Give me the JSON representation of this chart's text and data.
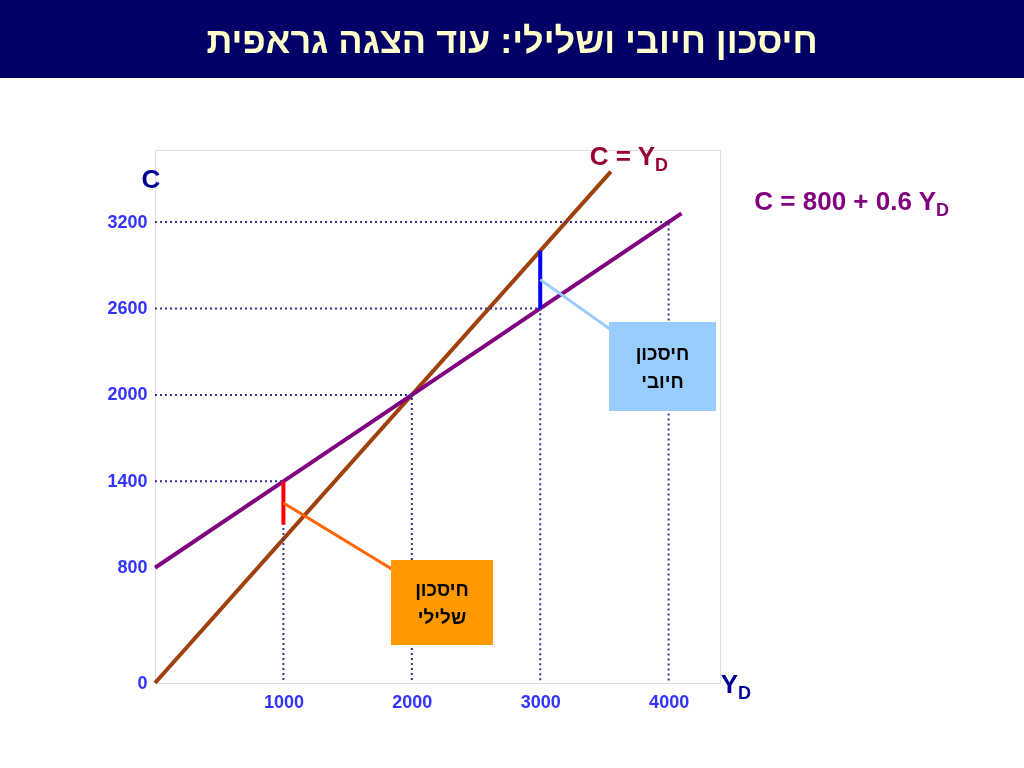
{
  "chart_data": {
    "type": "line",
    "title": "חיסכון חיובי ושלילי: עוד הצגה גראפית",
    "xlabel": "Y$_{D}$",
    "ylabel": "C",
    "xlim": [
      0,
      4400
    ],
    "ylim": [
      0,
      3700
    ],
    "xticks": [
      1000,
      2000,
      3000,
      4000
    ],
    "yticks": [
      0,
      800,
      1400,
      2000,
      2600,
      3200
    ],
    "grid": false,
    "series": [
      {
        "name": "C = Y$_{D}$",
        "color": "#a0410d",
        "x": [
          0,
          3550
        ],
        "values": [
          0,
          3550
        ]
      },
      {
        "name": "C = 800 + 0.6 Y$_{D}$",
        "color": "#800080",
        "x": [
          0,
          4100
        ],
        "values": [
          800,
          3260
        ]
      },
      {
        "color": "#333399",
        "line_style": "dotted",
        "x": [
          0,
          1000,
          1000
        ],
        "values": [
          1400,
          1400,
          0
        ]
      },
      {
        "color": "#333399",
        "line_style": "dotted",
        "x": [
          0,
          2000,
          2000
        ],
        "values": [
          2000,
          2000,
          0
        ]
      },
      {
        "color": "#333399",
        "line_style": "dotted",
        "x": [
          0,
          3000,
          3000
        ],
        "values": [
          2600,
          2600,
          0
        ]
      },
      {
        "color": "#333399",
        "line_style": "dotted",
        "x": [
          0,
          4000,
          4000
        ],
        "values": [
          3200,
          3200,
          0
        ]
      },
      {
        "color": "#ff0000",
        "x": [
          1000,
          1000
        ],
        "values": [
          1100,
          1400
        ]
      },
      {
        "color": "#0000ff",
        "x": [
          3000,
          3000
        ],
        "values": [
          2600,
          3000
        ]
      }
    ],
    "annotations": [
      {
        "text": "חיסכון שלילי",
        "x": 1000,
        "y": 1250
      },
      {
        "text": "חיסכון חיובי",
        "x": 3000,
        "y": 2800
      }
    ]
  }
}
